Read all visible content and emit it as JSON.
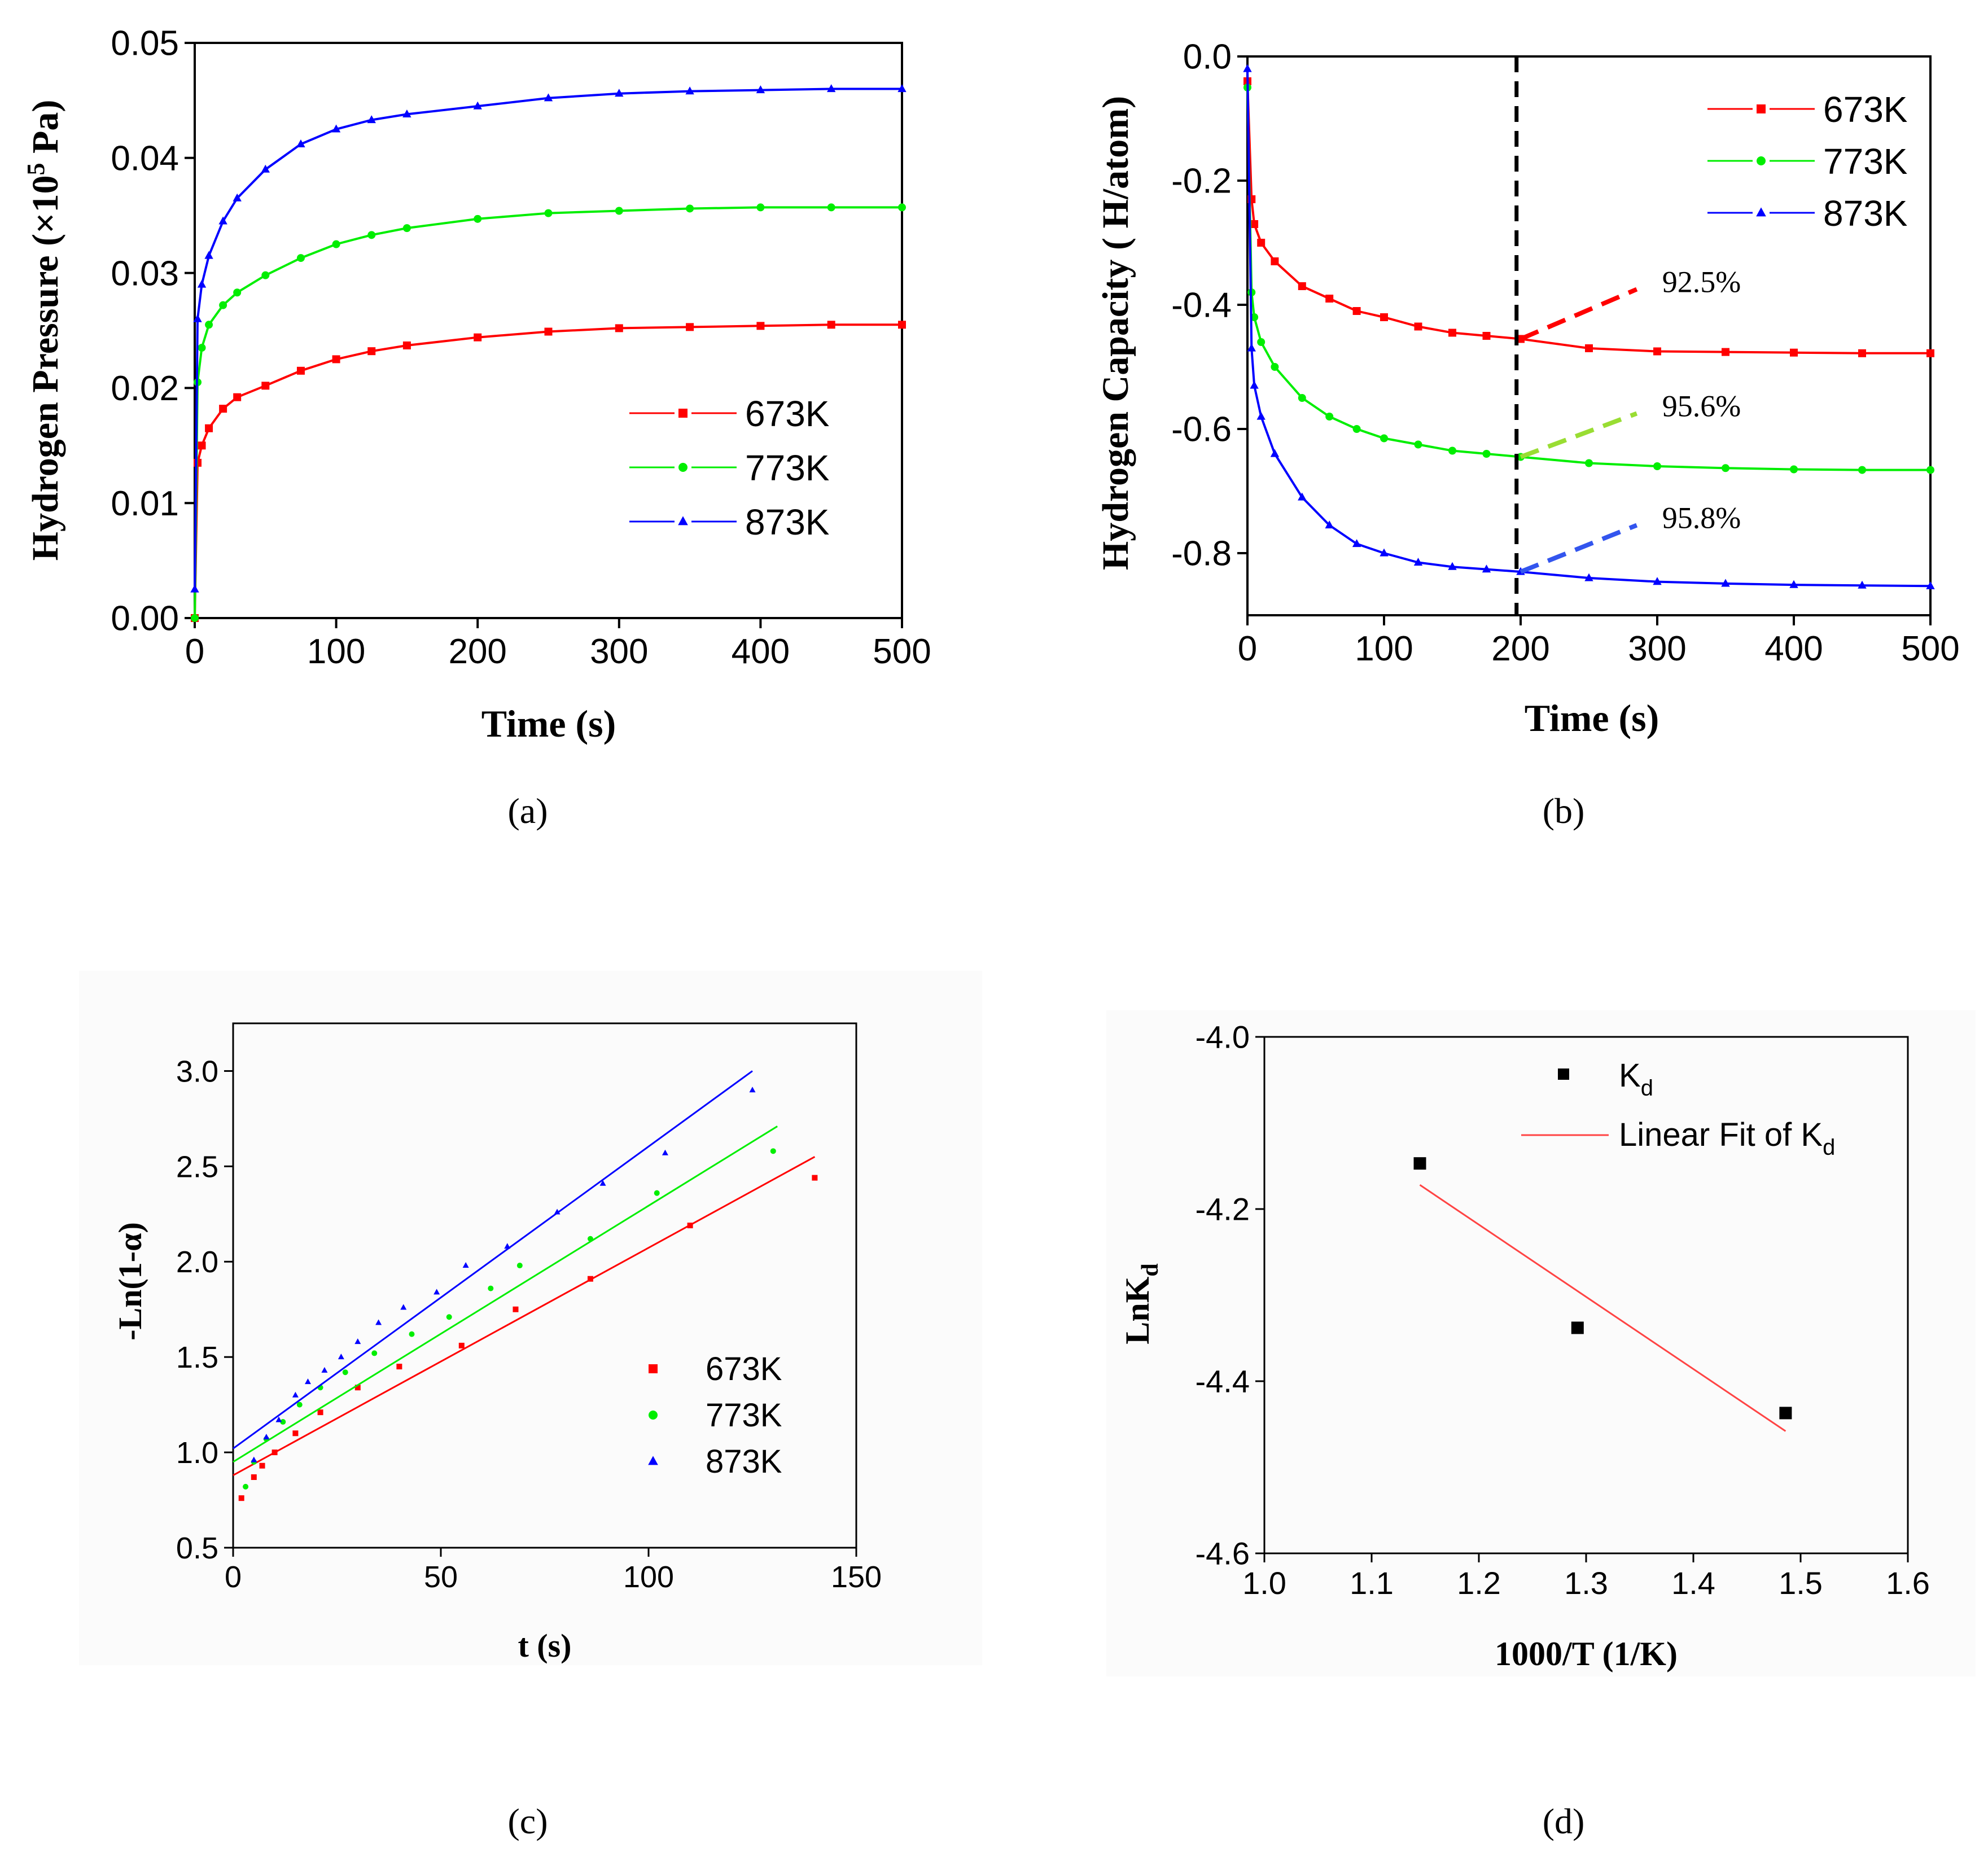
{
  "chart_data": [
    {
      "panel": "(a)",
      "type": "line",
      "xlabel": "Time (s)",
      "ylabel_main": "Hydrogen Pressure (×10",
      "ylabel_sup": "5",
      "ylabel_end": " Pa)",
      "xlim": [
        0,
        500
      ],
      "ylim": [
        0,
        0.05
      ],
      "xticks": [
        "0",
        "100",
        "200",
        "300",
        "400",
        "500"
      ],
      "yticks": [
        "0.00",
        "0.01",
        "0.02",
        "0.03",
        "0.04",
        "0.05"
      ],
      "xtick_values": [
        0,
        100,
        200,
        300,
        400,
        500
      ],
      "ytick_values": [
        0,
        0.01,
        0.02,
        0.03,
        0.04,
        0.05
      ],
      "legend_position": "center-right",
      "series": [
        {
          "name": "673K",
          "color": "#ff0000",
          "marker": "square",
          "x": [
            0,
            2,
            5,
            10,
            20,
            30,
            50,
            75,
            100,
            125,
            150,
            200,
            250,
            300,
            350,
            400,
            450,
            500
          ],
          "y": [
            0.0,
            0.0135,
            0.015,
            0.0165,
            0.0182,
            0.0192,
            0.0202,
            0.0215,
            0.0225,
            0.0232,
            0.0237,
            0.0244,
            0.0249,
            0.0252,
            0.0253,
            0.0254,
            0.0255,
            0.0255
          ]
        },
        {
          "name": "773K",
          "color": "#00ee00",
          "marker": "circle",
          "x": [
            0,
            2,
            5,
            10,
            20,
            30,
            50,
            75,
            100,
            125,
            150,
            200,
            250,
            300,
            350,
            400,
            450,
            500
          ],
          "y": [
            0.0,
            0.0205,
            0.0235,
            0.0255,
            0.0272,
            0.0283,
            0.0298,
            0.0313,
            0.0325,
            0.0333,
            0.0339,
            0.0347,
            0.0352,
            0.0354,
            0.0356,
            0.0357,
            0.0357,
            0.0357
          ]
        },
        {
          "name": "873K",
          "color": "#0000ff",
          "marker": "triangle",
          "x": [
            0,
            2,
            5,
            10,
            20,
            30,
            50,
            75,
            100,
            125,
            150,
            200,
            250,
            300,
            350,
            400,
            450,
            500
          ],
          "y": [
            0.0025,
            0.026,
            0.029,
            0.0315,
            0.0345,
            0.0365,
            0.039,
            0.0412,
            0.0425,
            0.0433,
            0.0438,
            0.0445,
            0.0452,
            0.0456,
            0.0458,
            0.0459,
            0.046,
            0.046
          ]
        }
      ]
    },
    {
      "panel": "(b)",
      "type": "line",
      "xlabel": "Time  (s)",
      "ylabel": "Hydrogen Capacity ( H/atom)",
      "xlim": [
        0,
        500
      ],
      "ylim": [
        -0.9,
        0.0
      ],
      "xticks": [
        "0",
        "100",
        "200",
        "300",
        "400",
        "500"
      ],
      "yticks": [
        "0.0",
        "-0.2",
        "-0.4",
        "-0.6",
        "-0.8"
      ],
      "xtick_values": [
        0,
        100,
        200,
        300,
        400,
        500
      ],
      "ytick_values": [
        0.0,
        -0.2,
        -0.4,
        -0.6,
        -0.8
      ],
      "vline_x": 197,
      "legend_position": "top-right",
      "series": [
        {
          "name": "673K",
          "color": "#ff0000",
          "marker": "square",
          "x": [
            0,
            3,
            5,
            10,
            20,
            40,
            60,
            80,
            100,
            125,
            150,
            175,
            200,
            250,
            300,
            350,
            400,
            450,
            500
          ],
          "y": [
            -0.04,
            -0.23,
            -0.27,
            -0.3,
            -0.33,
            -0.37,
            -0.39,
            -0.41,
            -0.42,
            -0.435,
            -0.445,
            -0.45,
            -0.455,
            -0.47,
            -0.475,
            -0.476,
            -0.477,
            -0.478,
            -0.478
          ]
        },
        {
          "name": "773K",
          "color": "#00ee00",
          "marker": "circle",
          "x": [
            0,
            3,
            5,
            10,
            20,
            40,
            60,
            80,
            100,
            125,
            150,
            175,
            200,
            250,
            300,
            350,
            400,
            450,
            500
          ],
          "y": [
            -0.05,
            -0.38,
            -0.42,
            -0.46,
            -0.5,
            -0.55,
            -0.58,
            -0.6,
            -0.615,
            -0.625,
            -0.635,
            -0.64,
            -0.645,
            -0.655,
            -0.66,
            -0.663,
            -0.665,
            -0.666,
            -0.666
          ]
        },
        {
          "name": "873K",
          "color": "#0000ff",
          "marker": "triangle",
          "x": [
            0,
            3,
            5,
            10,
            20,
            40,
            60,
            80,
            100,
            125,
            150,
            175,
            200,
            250,
            300,
            350,
            400,
            450,
            500
          ],
          "y": [
            -0.02,
            -0.47,
            -0.53,
            -0.58,
            -0.64,
            -0.71,
            -0.755,
            -0.785,
            -0.8,
            -0.815,
            -0.822,
            -0.826,
            -0.83,
            -0.84,
            -0.846,
            -0.849,
            -0.851,
            -0.852,
            -0.853
          ]
        }
      ],
      "annotations": [
        {
          "text": "92.5%",
          "color": "#ff0000",
          "x1": 200,
          "y1": -0.455,
          "x2": 285,
          "y2": -0.375
        },
        {
          "text": "95.6%",
          "color": "#99dd33",
          "x1": 200,
          "y1": -0.645,
          "x2": 285,
          "y2": -0.575
        },
        {
          "text": "95.8%",
          "color": "#3355ee",
          "x1": 200,
          "y1": -0.83,
          "x2": 285,
          "y2": -0.755
        }
      ]
    },
    {
      "panel": "(c)",
      "type": "scatter",
      "xlabel": "t (s)",
      "ylabel": "-Ln(1-α)",
      "xlim": [
        0,
        150
      ],
      "ylim": [
        0.5,
        3.25
      ],
      "xticks": [
        "0",
        "50",
        "100",
        "150"
      ],
      "yticks": [
        "0.5",
        "1.0",
        "1.5",
        "2.0",
        "2.5",
        "3.0"
      ],
      "xtick_values": [
        0,
        50,
        100,
        150
      ],
      "ytick_values": [
        0.5,
        1.0,
        1.5,
        2.0,
        2.5,
        3.0
      ],
      "legend_position": "center-right",
      "series": [
        {
          "name": "673K",
          "color": "#ff0000",
          "marker": "square",
          "x": [
            2,
            5,
            7,
            10,
            15,
            21,
            30,
            40,
            55,
            68,
            86,
            110,
            140
          ],
          "y": [
            0.76,
            0.87,
            0.93,
            1.0,
            1.1,
            1.21,
            1.34,
            1.45,
            1.56,
            1.75,
            1.91,
            2.19,
            2.44
          ],
          "fit": [
            [
              0,
              0.88
            ],
            [
              140,
              2.55
            ]
          ]
        },
        {
          "name": "773K",
          "color": "#00ee00",
          "marker": "circle",
          "x": [
            3,
            5,
            8,
            12,
            16,
            21,
            27,
            34,
            43,
            52,
            62,
            69,
            86,
            102,
            130
          ],
          "y": [
            0.82,
            0.95,
            1.07,
            1.16,
            1.25,
            1.34,
            1.42,
            1.52,
            1.62,
            1.71,
            1.86,
            1.98,
            2.12,
            2.36,
            2.58
          ],
          "fit": [
            [
              0,
              0.95
            ],
            [
              131,
              2.71
            ]
          ]
        },
        {
          "name": "873K",
          "color": "#0000ff",
          "marker": "triangle",
          "x": [
            5,
            8,
            11,
            15,
            18,
            22,
            26,
            30,
            35,
            41,
            49,
            56,
            66,
            78,
            89,
            104,
            125
          ],
          "y": [
            0.96,
            1.08,
            1.17,
            1.3,
            1.37,
            1.43,
            1.5,
            1.58,
            1.68,
            1.76,
            1.84,
            1.98,
            2.08,
            2.26,
            2.41,
            2.57,
            2.9
          ],
          "fit": [
            [
              0,
              1.02
            ],
            [
              125,
              3.0
            ]
          ]
        }
      ]
    },
    {
      "panel": "(d)",
      "type": "scatter",
      "xlabel": "1000/T (1/K)",
      "ylabel": "LnK",
      "ylabel_sub": "d",
      "xlim": [
        1.0,
        1.6
      ],
      "ylim": [
        -4.6,
        -4.0
      ],
      "xticks": [
        "1.0",
        "1.1",
        "1.2",
        "1.3",
        "1.4",
        "1.5",
        "1.6"
      ],
      "yticks": [
        "-4.0",
        "-4.2",
        "-4.4",
        "-4.6"
      ],
      "xtick_values": [
        1.0,
        1.1,
        1.2,
        1.3,
        1.4,
        1.5,
        1.6
      ],
      "ytick_values": [
        -4.0,
        -4.2,
        -4.4,
        -4.6
      ],
      "legend_position": "top-right",
      "legend": [
        {
          "label": "K",
          "sub": "d"
        },
        {
          "label": "Linear Fit of K",
          "sub": "d"
        }
      ],
      "series": [
        {
          "name": "Kd",
          "color": "#000000",
          "marker": "square",
          "x": [
            1.145,
            1.292,
            1.486
          ],
          "y": [
            -4.147,
            -4.338,
            -4.437
          ]
        }
      ],
      "fit": {
        "color": "#ff4444",
        "points": [
          [
            1.145,
            -4.172
          ],
          [
            1.486,
            -4.458
          ]
        ]
      }
    }
  ],
  "captions": {
    "a": "(a)",
    "b": "(b)",
    "c": "(c)",
    "d": "(d)"
  }
}
